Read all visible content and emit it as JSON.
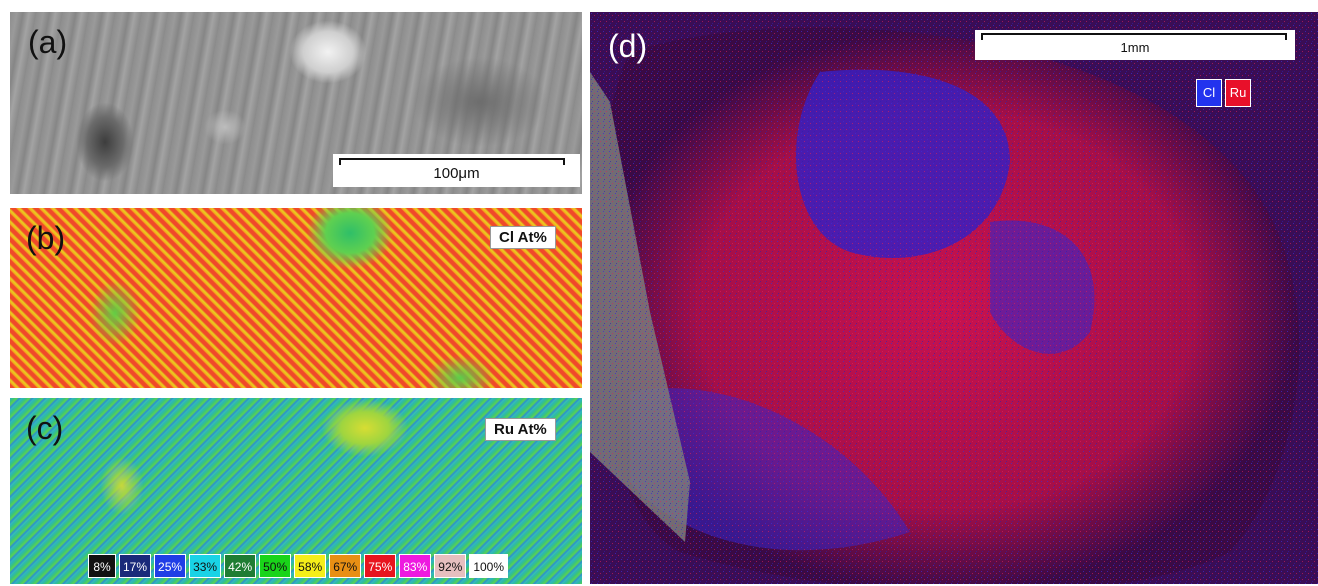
{
  "panels": {
    "a": {
      "label": "(a)",
      "scalebar": "100μm"
    },
    "b": {
      "label": "(b)",
      "tag": "Cl At%"
    },
    "c": {
      "label": "(c)",
      "tag": "Ru At%"
    },
    "d": {
      "label": "(d)",
      "scalebar": "1mm",
      "elements": [
        "Cl",
        "Ru"
      ]
    }
  },
  "element_colors": {
    "Cl": "#2233ee",
    "Ru": "#e8102a"
  },
  "legend": [
    {
      "label": "8%",
      "color": "#111111",
      "text": "#ffffff"
    },
    {
      "label": "17%",
      "color": "#1a2a7a",
      "text": "#ffffff"
    },
    {
      "label": "25%",
      "color": "#1f3ee6",
      "text": "#ffffff"
    },
    {
      "label": "33%",
      "color": "#19d3e6",
      "text": "#111111"
    },
    {
      "label": "42%",
      "color": "#1f7d33",
      "text": "#ffffff"
    },
    {
      "label": "50%",
      "color": "#19d419",
      "text": "#111111"
    },
    {
      "label": "58%",
      "color": "#f5ee19",
      "text": "#111111"
    },
    {
      "label": "67%",
      "color": "#e88f14",
      "text": "#111111"
    },
    {
      "label": "75%",
      "color": "#e8141e",
      "text": "#ffffff"
    },
    {
      "label": "83%",
      "color": "#ee19e0",
      "text": "#ffffff"
    },
    {
      "label": "92%",
      "color": "#e6bfbf",
      "text": "#111111"
    },
    {
      "label": "100%",
      "color": "#ffffff",
      "text": "#111111"
    }
  ]
}
